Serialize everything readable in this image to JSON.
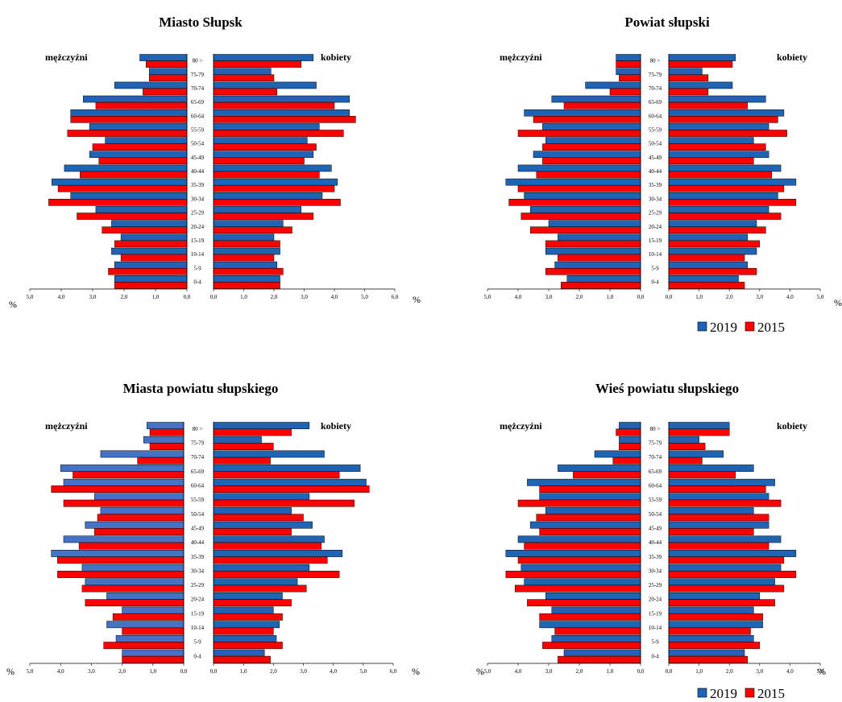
{
  "legend": [
    {
      "label": "2019",
      "color": "#1f64b4"
    },
    {
      "label": "2015",
      "color": "#ff0000"
    }
  ],
  "colors": {
    "y2019": "#1f64b4",
    "y2019_light": "#4472c4",
    "y2015": "#ff0000"
  },
  "chart_data": [
    {
      "type": "bar",
      "title": "Miasto Słupsk",
      "left_label": "mężczyźni",
      "right_label": "kobiety",
      "unit_label": "%",
      "categories": [
        "80 >",
        "75-79",
        "70-74",
        "65-69",
        "60-64",
        "55-59",
        "50-54",
        "45-49",
        "40-44",
        "35-39",
        "30-34",
        "25-29",
        "20-24",
        "15-19",
        "10-14",
        "5-9",
        "0-4"
      ],
      "left_ticks": [
        "5,0",
        "4,0",
        "3,0",
        "2,0",
        "1,0",
        "0,0"
      ],
      "right_ticks": [
        "0,0",
        "1,0",
        "2,0",
        "3,0",
        "4,0",
        "5,0",
        "6,0"
      ],
      "left_max": 5,
      "right_max": 6,
      "men_2019": [
        1.5,
        1.2,
        2.3,
        3.3,
        3.7,
        3.1,
        2.6,
        3.1,
        3.9,
        4.3,
        3.7,
        2.9,
        2.4,
        2.1,
        2.4,
        2.3,
        2.3
      ],
      "men_2015": [
        1.3,
        1.2,
        1.4,
        2.9,
        3.7,
        3.8,
        3.0,
        2.8,
        3.4,
        4.1,
        4.4,
        3.5,
        2.7,
        2.3,
        2.1,
        2.5,
        2.3
      ],
      "women_2019": [
        3.3,
        1.9,
        3.4,
        4.5,
        4.5,
        3.5,
        3.1,
        3.3,
        3.9,
        4.1,
        3.6,
        2.9,
        2.3,
        2.0,
        2.2,
        2.1,
        2.2
      ],
      "women_2015": [
        2.9,
        2.0,
        2.1,
        4.0,
        4.7,
        4.3,
        3.4,
        3.0,
        3.5,
        4.0,
        4.2,
        3.3,
        2.6,
        2.2,
        2.0,
        2.3,
        2.2
      ]
    },
    {
      "type": "bar",
      "title": "Powiat słupski",
      "left_label": "mężczyźni",
      "right_label": "kobiety",
      "unit_label": "%",
      "categories": [
        "80 >",
        "75-79",
        "70-74",
        "65-69",
        "60-64",
        "55-59",
        "50-54",
        "45-49",
        "40-44",
        "35-39",
        "30-34",
        "25-29",
        "20-24",
        "15-19",
        "10-14",
        "5-9",
        "0-4"
      ],
      "left_ticks": [
        "5,0",
        "4,0",
        "3,0",
        "2,0",
        "1,0",
        "0,0"
      ],
      "right_ticks": [
        "0,0",
        "1,0",
        "2,0",
        "3,0",
        "4,0",
        "5,0"
      ],
      "left_max": 5,
      "right_max": 5,
      "men_2019": [
        0.8,
        0.8,
        1.8,
        2.9,
        3.8,
        3.2,
        3.1,
        3.5,
        4.0,
        4.4,
        3.8,
        3.6,
        3.0,
        2.7,
        3.1,
        2.8,
        2.4
      ],
      "men_2015": [
        0.8,
        0.7,
        1.0,
        2.5,
        3.5,
        4.0,
        3.2,
        3.2,
        3.4,
        4.0,
        4.3,
        3.9,
        3.6,
        3.1,
        2.7,
        3.1,
        2.6
      ],
      "women_2019": [
        2.2,
        1.1,
        2.1,
        3.2,
        3.8,
        3.3,
        2.8,
        3.3,
        3.7,
        4.2,
        3.6,
        3.3,
        2.9,
        2.6,
        2.9,
        2.6,
        2.3
      ],
      "women_2015": [
        2.1,
        1.3,
        1.3,
        2.6,
        3.6,
        3.9,
        3.2,
        2.8,
        3.4,
        3.8,
        4.2,
        3.7,
        3.2,
        3.0,
        2.5,
        2.9,
        2.5
      ]
    },
    {
      "type": "bar",
      "title": "Miasta powiatu słupskiego",
      "left_label": "mężczyźni",
      "right_label": "kobiety",
      "unit_label": "%",
      "categories": [
        "80 >",
        "75-79",
        "70-74",
        "65-69",
        "60-64",
        "55-59",
        "50-54",
        "45-49",
        "40-44",
        "35-39",
        "30-34",
        "25-29",
        "20-24",
        "15-19",
        "10-14",
        "5-9",
        "0-4"
      ],
      "left_ticks": [
        "5,0",
        "4,0",
        "3,0",
        "2,0",
        "1,0",
        "0,0"
      ],
      "right_ticks": [
        "0,0",
        "1,0",
        "2,0",
        "3,0",
        "4,0",
        "5,0",
        "6,0"
      ],
      "left_max": 5,
      "right_max": 6,
      "men_2019": [
        1.2,
        1.3,
        2.7,
        4.0,
        3.9,
        2.9,
        2.7,
        3.2,
        3.9,
        4.3,
        3.3,
        3.2,
        2.5,
        2.0,
        2.5,
        2.2,
        2.0
      ],
      "men_2015": [
        1.1,
        1.1,
        1.5,
        3.6,
        4.3,
        3.9,
        2.8,
        2.9,
        3.4,
        4.1,
        4.1,
        3.3,
        3.2,
        2.3,
        2.0,
        2.6,
        2.0
      ],
      "women_2019": [
        3.2,
        1.6,
        3.7,
        4.9,
        5.1,
        3.2,
        2.6,
        3.3,
        3.7,
        4.3,
        3.2,
        2.8,
        2.3,
        2.0,
        2.2,
        2.1,
        1.7
      ],
      "women_2015": [
        2.6,
        2.0,
        1.9,
        4.2,
        5.2,
        4.7,
        3.0,
        2.6,
        3.6,
        3.8,
        4.2,
        3.1,
        2.6,
        2.3,
        2.0,
        2.3,
        1.9
      ]
    },
    {
      "type": "bar",
      "title": "Wieś powiatu słupskiego",
      "left_label": "mężczyźni",
      "right_label": "kobiety",
      "unit_label": "%",
      "categories": [
        "80 >",
        "75-79",
        "70-74",
        "65-69",
        "60-64",
        "55-59",
        "50-54",
        "45-49",
        "40-44",
        "35-39",
        "30-34",
        "25-29",
        "20-24",
        "15-19",
        "10-14",
        "5-9",
        "0-4"
      ],
      "left_ticks": [
        "5,0",
        "4,0",
        "3,0",
        "2,0",
        "1,0",
        "0,0"
      ],
      "right_ticks": [
        "0,0",
        "1,0",
        "2,0",
        "3,0",
        "4,0",
        "5,0"
      ],
      "left_max": 5,
      "right_max": 5,
      "men_2019": [
        0.7,
        0.7,
        1.5,
        2.7,
        3.7,
        3.3,
        3.1,
        3.6,
        4.0,
        4.4,
        3.9,
        3.8,
        3.1,
        2.9,
        3.3,
        2.9,
        2.5
      ],
      "men_2015": [
        0.8,
        0.7,
        0.9,
        2.2,
        3.3,
        4.0,
        3.4,
        3.3,
        3.8,
        4.0,
        4.4,
        4.1,
        3.7,
        3.3,
        2.8,
        3.2,
        2.7
      ],
      "women_2019": [
        2.0,
        1.0,
        1.8,
        2.8,
        3.5,
        3.3,
        2.8,
        3.3,
        3.7,
        4.2,
        3.7,
        3.5,
        3.0,
        2.8,
        3.1,
        2.8,
        2.5
      ],
      "women_2015": [
        2.0,
        1.2,
        1.1,
        2.2,
        3.2,
        3.7,
        3.3,
        2.8,
        3.3,
        3.8,
        4.2,
        3.8,
        3.5,
        3.1,
        2.7,
        3.0,
        2.6
      ]
    }
  ]
}
